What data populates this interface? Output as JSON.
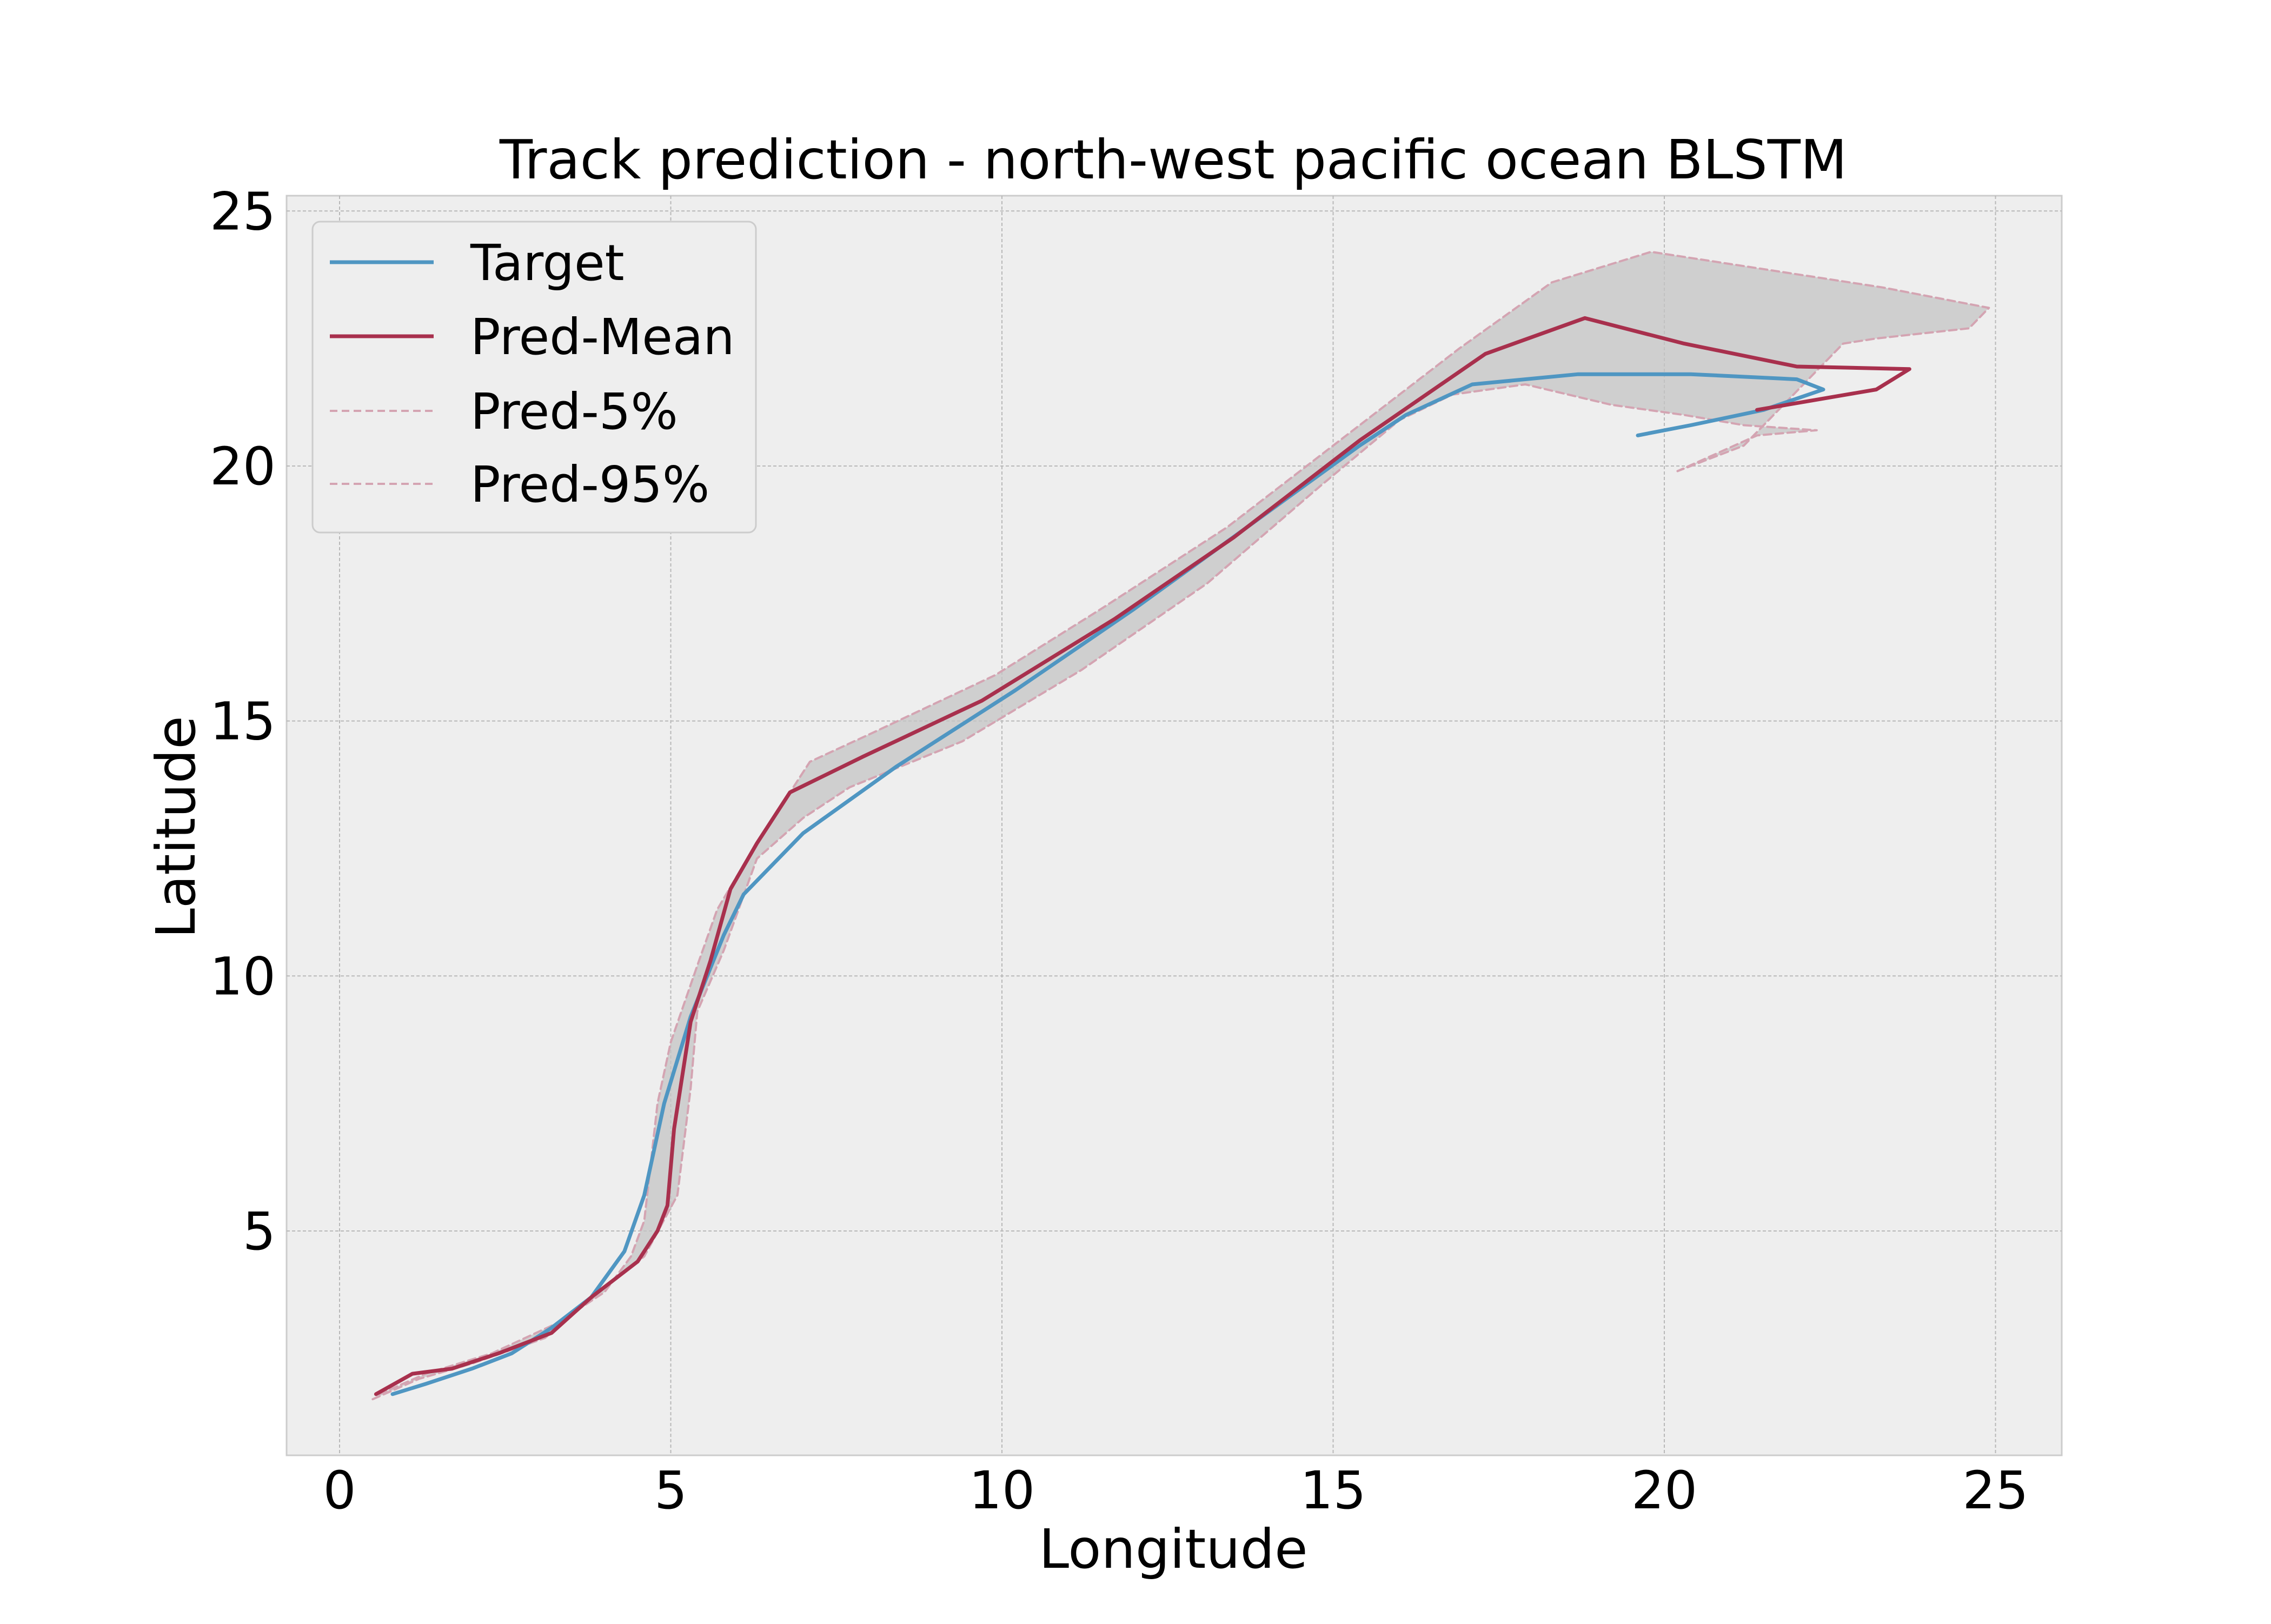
{
  "chart_data": {
    "type": "line",
    "title": "Track prediction - north-west pacific ocean BLSTM",
    "xlabel": "Longitude",
    "ylabel": "Latitude",
    "xlim": [
      -0.8,
      26.0
    ],
    "ylim": [
      0.6,
      25.3
    ],
    "xticks": [
      0,
      5,
      10,
      15,
      20,
      25
    ],
    "yticks": [
      5,
      10,
      15,
      20,
      25
    ],
    "xtick_labels": [
      "0",
      "5",
      "10",
      "15",
      "20",
      "25"
    ],
    "ytick_labels": [
      "5",
      "10",
      "15",
      "20",
      "25"
    ],
    "grid": true,
    "legend_position": "upper-left",
    "colors": {
      "target": "#4f96c2",
      "pred_mean": "#a8304d",
      "band_line": "#d4a4b2",
      "band_fill": "#c4c4c4",
      "plot_background": "#eeeeee",
      "grid": "#b8b8b8"
    },
    "series": [
      {
        "name": "Target",
        "style": "solid",
        "points": [
          [
            0.8,
            1.8
          ],
          [
            1.3,
            2.0
          ],
          [
            2.0,
            2.3
          ],
          [
            2.6,
            2.6
          ],
          [
            3.2,
            3.1
          ],
          [
            3.8,
            3.7
          ],
          [
            4.3,
            4.6
          ],
          [
            4.6,
            5.7
          ],
          [
            4.9,
            7.5
          ],
          [
            5.3,
            9.2
          ],
          [
            5.8,
            10.8
          ],
          [
            6.1,
            11.6
          ],
          [
            7.0,
            12.8
          ],
          [
            8.4,
            14.1
          ],
          [
            10.2,
            15.6
          ],
          [
            12.0,
            17.2
          ],
          [
            13.7,
            18.8
          ],
          [
            15.4,
            20.4
          ],
          [
            16.1,
            21.0
          ],
          [
            17.1,
            21.6
          ],
          [
            18.7,
            21.8
          ],
          [
            20.4,
            21.8
          ],
          [
            22.0,
            21.7
          ],
          [
            22.4,
            21.5
          ],
          [
            21.5,
            21.1
          ],
          [
            20.4,
            20.8
          ],
          [
            19.6,
            20.6
          ]
        ]
      },
      {
        "name": "Pred-Mean",
        "style": "solid",
        "points": [
          [
            0.55,
            1.8
          ],
          [
            1.1,
            2.2
          ],
          [
            1.7,
            2.3
          ],
          [
            2.4,
            2.6
          ],
          [
            3.2,
            3.0
          ],
          [
            3.8,
            3.7
          ],
          [
            4.5,
            4.4
          ],
          [
            4.8,
            5.0
          ],
          [
            4.95,
            5.5
          ],
          [
            5.05,
            7.0
          ],
          [
            5.3,
            9.1
          ],
          [
            5.6,
            10.3
          ],
          [
            5.9,
            11.7
          ],
          [
            6.3,
            12.6
          ],
          [
            6.8,
            13.6
          ],
          [
            7.9,
            14.3
          ],
          [
            9.7,
            15.4
          ],
          [
            11.7,
            17.0
          ],
          [
            13.5,
            18.6
          ],
          [
            15.4,
            20.5
          ],
          [
            17.3,
            22.2
          ],
          [
            18.8,
            22.9
          ],
          [
            20.3,
            22.4
          ],
          [
            22.0,
            21.95
          ],
          [
            23.7,
            21.9
          ],
          [
            23.2,
            21.5
          ],
          [
            21.4,
            21.1
          ]
        ]
      },
      {
        "name": "Pred-5%",
        "style": "dashed",
        "points": [
          [
            0.5,
            1.7
          ],
          [
            1.2,
            2.1
          ],
          [
            2.0,
            2.4
          ],
          [
            3.1,
            2.9
          ],
          [
            4.2,
            4.1
          ],
          [
            4.6,
            4.5
          ],
          [
            5.1,
            5.7
          ],
          [
            5.3,
            7.8
          ],
          [
            5.4,
            9.3
          ],
          [
            5.8,
            10.5
          ],
          [
            6.3,
            12.3
          ],
          [
            7.0,
            13.1
          ],
          [
            7.7,
            13.7
          ],
          [
            9.4,
            14.6
          ],
          [
            11.2,
            16.0
          ],
          [
            13.1,
            17.7
          ],
          [
            14.8,
            19.6
          ],
          [
            16.0,
            20.9
          ],
          [
            16.8,
            21.4
          ],
          [
            17.9,
            21.6
          ],
          [
            19.2,
            21.2
          ],
          [
            20.3,
            21.0
          ],
          [
            21.2,
            20.8
          ],
          [
            22.3,
            20.7
          ],
          [
            21.4,
            20.6
          ],
          [
            20.2,
            19.9
          ]
        ]
      },
      {
        "name": "Pred-95%",
        "style": "dashed",
        "points": [
          [
            0.6,
            1.8
          ],
          [
            1.3,
            2.2
          ],
          [
            2.3,
            2.6
          ],
          [
            3.3,
            3.2
          ],
          [
            4.0,
            3.8
          ],
          [
            4.4,
            4.5
          ],
          [
            4.6,
            5.2
          ],
          [
            4.8,
            7.5
          ],
          [
            5.0,
            8.7
          ],
          [
            5.4,
            10.2
          ],
          [
            5.7,
            11.3
          ],
          [
            6.2,
            12.4
          ],
          [
            6.7,
            13.4
          ],
          [
            7.1,
            14.2
          ],
          [
            8.1,
            14.8
          ],
          [
            9.9,
            15.9
          ],
          [
            11.5,
            17.2
          ],
          [
            13.4,
            18.8
          ],
          [
            15.1,
            20.5
          ],
          [
            16.9,
            22.3
          ],
          [
            18.3,
            23.6
          ],
          [
            19.8,
            24.2
          ],
          [
            21.3,
            23.9
          ],
          [
            23.3,
            23.5
          ],
          [
            24.9,
            23.1
          ],
          [
            24.6,
            22.7
          ],
          [
            23.2,
            22.5
          ],
          [
            22.7,
            22.4
          ],
          [
            21.2,
            20.4
          ],
          [
            20.2,
            19.9
          ]
        ]
      }
    ]
  }
}
